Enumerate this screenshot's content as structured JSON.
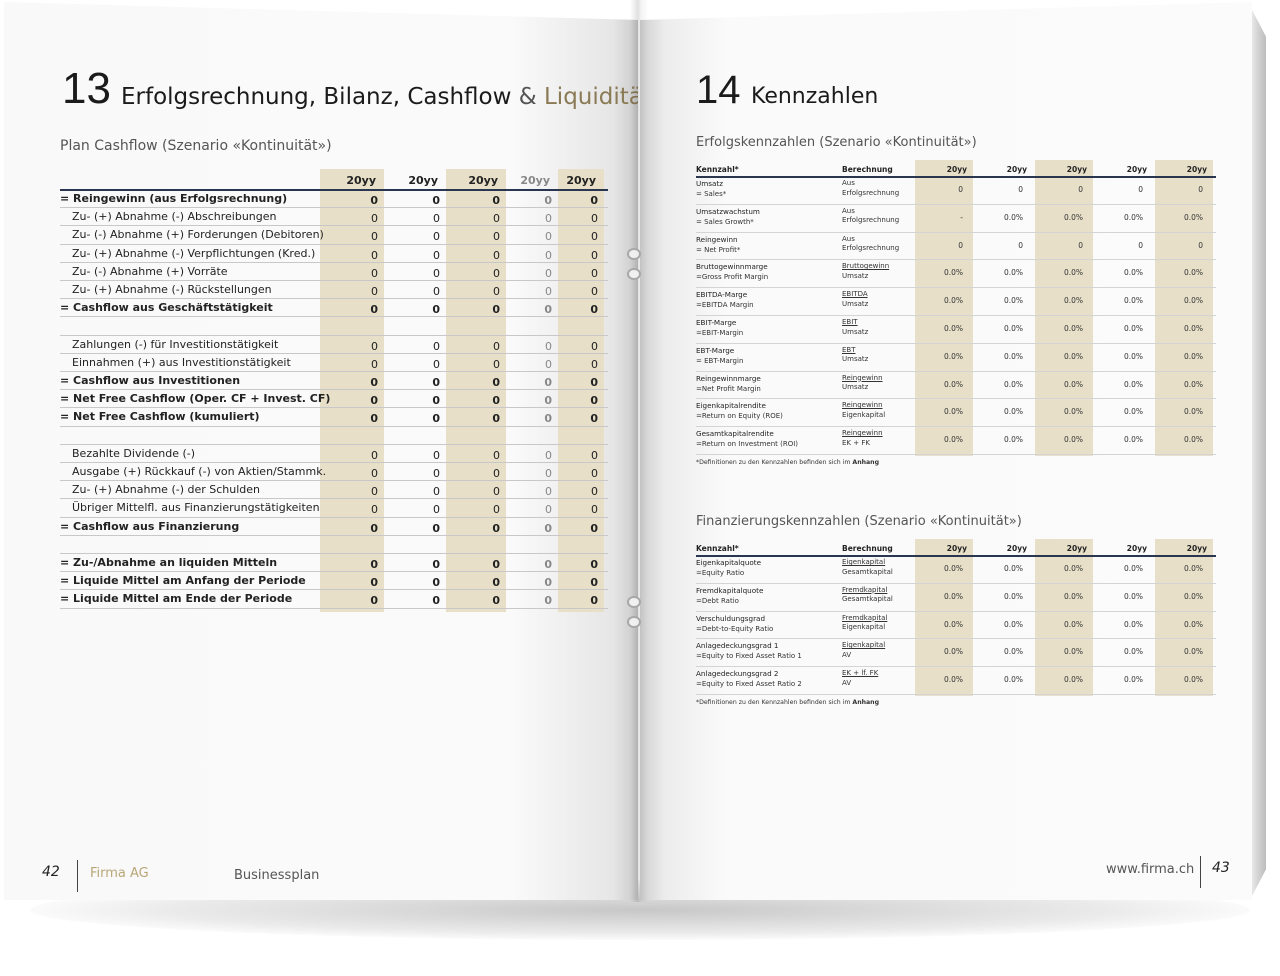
{
  "left": {
    "chapter_number": "13",
    "chapter_title_main": "Erfolgsrechnung, Bilanz, Cashflow",
    "chapter_title_amp": "&",
    "chapter_title_tail": "Liquidität",
    "section_title": "Plan Cashflow (Szenario «Kontinuität»)",
    "headers": [
      "20yy",
      "20yy",
      "20yy",
      "20yy",
      "20yy"
    ],
    "rows": [
      {
        "label": "= Reingewinn (aus Erfolgsrechnung)",
        "bold": true,
        "values": [
          "0",
          "0",
          "0",
          "0",
          "0"
        ]
      },
      {
        "label": "Zu- (+) Abnahme (-) Abschreibungen",
        "bold": false,
        "values": [
          "0",
          "0",
          "0",
          "0",
          "0"
        ]
      },
      {
        "label": "Zu- (-) Abnahme (+) Forderungen (Debitoren)",
        "bold": false,
        "values": [
          "0",
          "0",
          "0",
          "0",
          "0"
        ]
      },
      {
        "label": "Zu- (+) Abnahme (-) Verpflichtungen (Kred.)",
        "bold": false,
        "values": [
          "0",
          "0",
          "0",
          "0",
          "0"
        ]
      },
      {
        "label": "Zu- (-) Abnahme (+) Vorräte",
        "bold": false,
        "values": [
          "0",
          "0",
          "0",
          "0",
          "0"
        ]
      },
      {
        "label": "Zu- (+) Abnahme (-) Rückstellungen",
        "bold": false,
        "values": [
          "0",
          "0",
          "0",
          "0",
          "0"
        ]
      },
      {
        "label": "= Cashflow aus Geschäftstätigkeit",
        "bold": true,
        "values": [
          "0",
          "0",
          "0",
          "0",
          "0"
        ]
      },
      {
        "label": "",
        "bold": false,
        "values": [
          "",
          "",
          "",
          "",
          ""
        ]
      },
      {
        "label": "Zahlungen (-) für Investitionstätigkeit",
        "bold": false,
        "values": [
          "0",
          "0",
          "0",
          "0",
          "0"
        ]
      },
      {
        "label": "Einnahmen (+) aus Investitionstätigkeit",
        "bold": false,
        "values": [
          "0",
          "0",
          "0",
          "0",
          "0"
        ]
      },
      {
        "label": "= Cashflow aus Investitionen",
        "bold": true,
        "values": [
          "0",
          "0",
          "0",
          "0",
          "0"
        ]
      },
      {
        "label": "= Net Free Cashflow (Oper. CF + Invest. CF)",
        "bold": true,
        "values": [
          "0",
          "0",
          "0",
          "0",
          "0"
        ]
      },
      {
        "label": "= Net Free Cashflow (kumuliert)",
        "bold": true,
        "values": [
          "0",
          "0",
          "0",
          "0",
          "0"
        ]
      },
      {
        "label": "",
        "bold": false,
        "values": [
          "",
          "",
          "",
          "",
          ""
        ]
      },
      {
        "label": "Bezahlte Dividende (-)",
        "bold": false,
        "values": [
          "0",
          "0",
          "0",
          "0",
          "0"
        ]
      },
      {
        "label": "Ausgabe (+) Rückkauf (-) von Aktien/Stammk.",
        "bold": false,
        "values": [
          "0",
          "0",
          "0",
          "0",
          "0"
        ]
      },
      {
        "label": "Zu- (+) Abnahme (-) der Schulden",
        "bold": false,
        "values": [
          "0",
          "0",
          "0",
          "0",
          "0"
        ]
      },
      {
        "label": "Übriger Mittelfl. aus Finanzierungstätigkeiten",
        "bold": false,
        "values": [
          "0",
          "0",
          "0",
          "0",
          "0"
        ]
      },
      {
        "label": "= Cashflow aus Finanzierung",
        "bold": true,
        "values": [
          "0",
          "0",
          "0",
          "0",
          "0"
        ]
      },
      {
        "label": "",
        "bold": false,
        "values": [
          "",
          "",
          "",
          "",
          ""
        ]
      },
      {
        "label": "= Zu-/Abnahme an liquiden Mitteln",
        "bold": true,
        "values": [
          "0",
          "0",
          "0",
          "0",
          "0"
        ]
      },
      {
        "label": "= Liquide Mittel am Anfang der Periode",
        "bold": true,
        "values": [
          "0",
          "0",
          "0",
          "0",
          "0"
        ]
      },
      {
        "label": "= Liquide Mittel am Ende der Periode",
        "bold": true,
        "values": [
          "0",
          "0",
          "0",
          "0",
          "0"
        ]
      }
    ],
    "footer": {
      "page_number": "42",
      "company": "Firma AG",
      "doc": "Businessplan"
    }
  },
  "right": {
    "chapter_number": "14",
    "chapter_title": "Kennzahlen",
    "table1": {
      "title": "Erfolgskennzahlen (Szenario «Kontinuität»)",
      "col_kennzahl": "Kennzahl*",
      "col_berechnung": "Berechnung",
      "headers": [
        "20yy",
        "20yy",
        "20yy",
        "20yy",
        "20yy"
      ],
      "rows": [
        {
          "name": "Umsatz",
          "sub": "= Sales*",
          "calc1": "Aus",
          "calc2": "Erfolgsrechnung",
          "underline": false,
          "values": [
            "0",
            "0",
            "0",
            "0",
            "0"
          ]
        },
        {
          "name": "Umsatzwachstum",
          "sub": "= Sales Growth*",
          "calc1": "Aus",
          "calc2": "Erfolgsrechnung",
          "underline": false,
          "values": [
            "-",
            "0.0%",
            "0.0%",
            "0.0%",
            "0.0%"
          ]
        },
        {
          "name": "Reingewinn",
          "sub": "= Net Profit*",
          "calc1": "Aus",
          "calc2": "Erfolgsrechnung",
          "underline": false,
          "values": [
            "0",
            "0",
            "0",
            "0",
            "0"
          ]
        },
        {
          "name": "Bruttogewinnmarge",
          "sub": "=Gross Profit Margin",
          "calc1": "Bruttogewinn",
          "calc2": "Umsatz",
          "underline": true,
          "values": [
            "0.0%",
            "0.0%",
            "0.0%",
            "0.0%",
            "0.0%"
          ]
        },
        {
          "name": "EBITDA-Marge",
          "sub": "=EBITDA Margin",
          "calc1": "EBITDA",
          "calc2": "Umsatz",
          "underline": true,
          "values": [
            "0.0%",
            "0.0%",
            "0.0%",
            "0.0%",
            "0.0%"
          ]
        },
        {
          "name": "EBIT-Marge",
          "sub": "=EBIT-Margin",
          "calc1": "EBIT",
          "calc2": "Umsatz",
          "underline": true,
          "values": [
            "0.0%",
            "0.0%",
            "0.0%",
            "0.0%",
            "0.0%"
          ]
        },
        {
          "name": "EBT-Marge",
          "sub": "= EBT-Margin",
          "calc1": "EBT",
          "calc2": "Umsatz",
          "underline": true,
          "values": [
            "0.0%",
            "0.0%",
            "0.0%",
            "0.0%",
            "0.0%"
          ]
        },
        {
          "name": "Reingewinnmarge",
          "sub": "=Net Profit Margin",
          "calc1": "Reingewinn",
          "calc2": "Umsatz",
          "underline": true,
          "values": [
            "0.0%",
            "0.0%",
            "0.0%",
            "0.0%",
            "0.0%"
          ]
        },
        {
          "name": "Eigenkapitalrendite",
          "sub": "=Return on Equity (ROE)",
          "calc1": "Reingewinn",
          "calc2": "Eigenkapital",
          "underline": true,
          "values": [
            "0.0%",
            "0.0%",
            "0.0%",
            "0.0%",
            "0.0%"
          ]
        },
        {
          "name": "Gesamtkapitalrendite",
          "sub": "=Return on Investment (ROI)",
          "calc1": "Reingewinn",
          "calc2": "EK + FK",
          "underline": true,
          "values": [
            "0.0%",
            "0.0%",
            "0.0%",
            "0.0%",
            "0.0%"
          ]
        }
      ],
      "note_prefix": "*Definitionen zu den Kennzahlen befinden sich im ",
      "note_link": "Anhang"
    },
    "table2": {
      "title": "Finanzierungskennzahlen (Szenario «Kontinuität»)",
      "col_kennzahl": "Kennzahl*",
      "col_berechnung": "Berechnung",
      "headers": [
        "20yy",
        "20yy",
        "20yy",
        "20yy",
        "20yy"
      ],
      "rows": [
        {
          "name": "Eigenkapitalquote",
          "sub": "=Equity Ratio",
          "calc1": "Eigenkapital",
          "calc2": "Gesamtkapital",
          "underline": true,
          "values": [
            "0.0%",
            "0.0%",
            "0.0%",
            "0.0%",
            "0.0%"
          ]
        },
        {
          "name": "Fremdkapitalquote",
          "sub": "=Debt Ratio",
          "calc1": "Fremdkapital",
          "calc2": "Gesamtkapital",
          "underline": true,
          "values": [
            "0.0%",
            "0.0%",
            "0.0%",
            "0.0%",
            "0.0%"
          ]
        },
        {
          "name": "Verschuldungsgrad",
          "sub": "=Debt-to-Equity Ratio",
          "calc1": "Fremdkapital",
          "calc2": "Eigenkapital",
          "underline": true,
          "values": [
            "0.0%",
            "0.0%",
            "0.0%",
            "0.0%",
            "0.0%"
          ]
        },
        {
          "name": "Anlagedeckungsgrad 1",
          "sub": "=Equity to Fixed Asset Ratio 1",
          "calc1": "Eigenkapital",
          "calc2": "AV",
          "underline": true,
          "values": [
            "0.0%",
            "0.0%",
            "0.0%",
            "0.0%",
            "0.0%"
          ]
        },
        {
          "name": "Anlagedeckungsgrad 2",
          "sub": "=Equity to Fixed Asset Ratio 2",
          "calc1": "EK + lf. FK",
          "calc2": "AV",
          "underline": true,
          "values": [
            "0.0%",
            "0.0%",
            "0.0%",
            "0.0%",
            "0.0%"
          ]
        }
      ],
      "note_prefix": "*Definitionen zu den Kennzahlen befinden sich im ",
      "note_link": "Anhang"
    },
    "footer": {
      "website": "www.firma.ch",
      "page_number": "43"
    }
  }
}
